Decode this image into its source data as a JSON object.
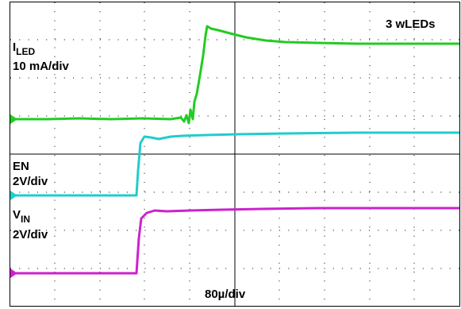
{
  "labels": {
    "led_current": {
      "symbol": "I",
      "subscript": "LED",
      "scale": "10 mA/div"
    },
    "led_count": "3 wLEDs",
    "enable": {
      "name": "EN",
      "scale": "2V/div"
    },
    "input_voltage": {
      "symbol": "V",
      "subscript": "IN",
      "scale": "2V/div"
    },
    "time_scale": "80µ/div"
  }
}
